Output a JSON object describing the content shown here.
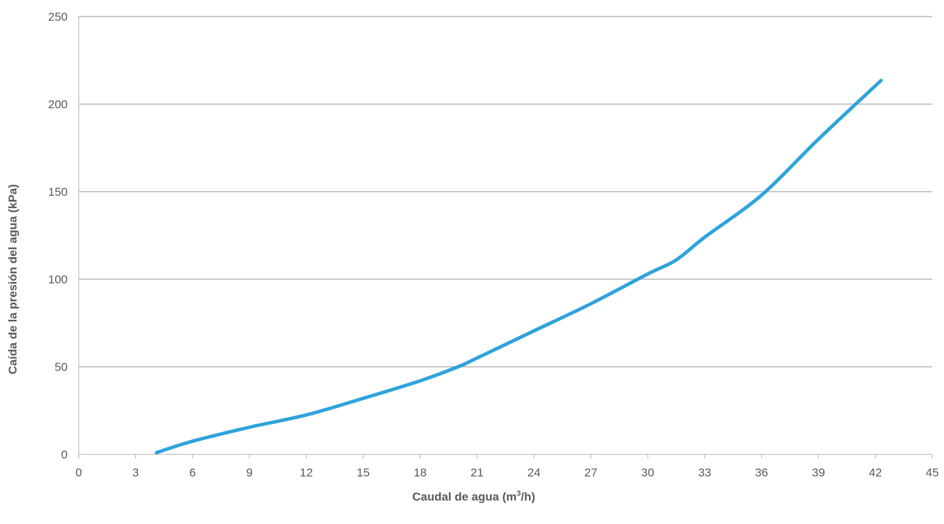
{
  "chart_data": {
    "type": "line",
    "xlabel": {
      "pre": "Caudal de agua (m",
      "sup": "3",
      "post": "/h)"
    },
    "ylabel": "Caída de la presión del agua (kPa)",
    "xlim": [
      0,
      45
    ],
    "ylim": [
      0,
      250
    ],
    "xticks": [
      "0",
      "3",
      "6",
      "9",
      "12",
      "15",
      "18",
      "21",
      "24",
      "27",
      "30",
      "33",
      "36",
      "39",
      "42",
      "45"
    ],
    "yticks": [
      "0",
      "50",
      "100",
      "150",
      "200",
      "250"
    ],
    "grid": "horizontal",
    "legend": "none",
    "series": [
      {
        "color": "#2ea3dc",
        "x": [
          4.1,
          6,
          9,
          12,
          15,
          18,
          20,
          21,
          24,
          27,
          30,
          31.5,
          33,
          36,
          39,
          42.3
        ],
        "y": [
          1,
          7.5,
          15.5,
          22.5,
          32,
          42,
          50,
          55,
          70.5,
          86,
          103,
          111,
          124,
          148,
          180,
          213.5
        ]
      }
    ]
  }
}
